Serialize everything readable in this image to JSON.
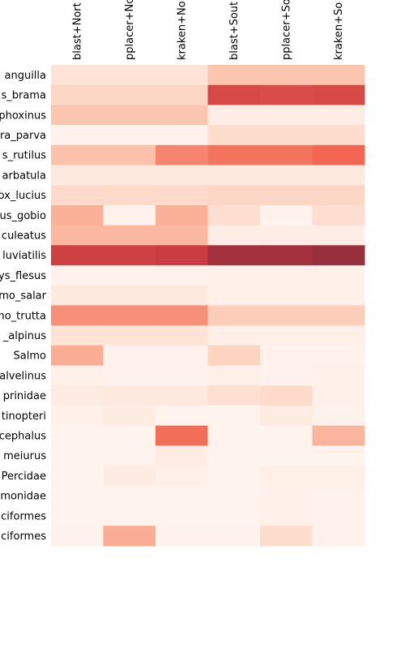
{
  "chart_data": {
    "type": "heatmap",
    "title": "",
    "xlabel": "",
    "ylabel": "",
    "columns": [
      "blast+North",
      "pplacer+North",
      "kraken+North",
      "blast+South",
      "pplacer+South",
      "kraken+South"
    ],
    "rows": [
      "Anguilla_anguilla",
      "Abramis_brama",
      "Phoxinus_phoxinus",
      "Leucaspius_parva",
      "Rutilus_rutilus",
      "Barbatula_barbatula",
      "Esox_lucius",
      "Gobio_gobio",
      "Gasterosteus_aculeatus",
      "Perca_fluviatilis",
      "Platichthys_flesus",
      "Salmo_salar",
      "Salmo_trutta",
      "Salvelinus_alpinus",
      "Salmo",
      "Salvelinus",
      "Cyprinidae",
      "Actinopteri",
      "Cottus_cephalus",
      "Ameiurus",
      "Percidae",
      "Salmonidae",
      "Cypriniformes",
      "Perciformes"
    ],
    "values": [
      [
        0.12,
        0.12,
        0.12,
        0.3,
        0.3,
        0.3
      ],
      [
        0.2,
        0.2,
        0.2,
        0.78,
        0.76,
        0.78
      ],
      [
        0.3,
        0.3,
        0.3,
        0.05,
        0.05,
        0.05
      ],
      [
        0.02,
        0.02,
        0.02,
        0.16,
        0.16,
        0.16
      ],
      [
        0.32,
        0.32,
        0.55,
        0.6,
        0.6,
        0.64
      ],
      [
        0.08,
        0.08,
        0.08,
        0.08,
        0.08,
        0.08
      ],
      [
        0.18,
        0.18,
        0.18,
        0.2,
        0.2,
        0.2
      ],
      [
        0.4,
        0.02,
        0.4,
        0.15,
        0.02,
        0.15
      ],
      [
        0.36,
        0.36,
        0.36,
        0.05,
        0.05,
        0.05
      ],
      [
        0.82,
        0.82,
        0.84,
        0.94,
        0.94,
        0.97
      ],
      [
        0.02,
        0.02,
        0.02,
        0.03,
        0.03,
        0.03
      ],
      [
        0.08,
        0.08,
        0.08,
        0.03,
        0.03,
        0.03
      ],
      [
        0.52,
        0.52,
        0.52,
        0.26,
        0.26,
        0.26
      ],
      [
        0.12,
        0.12,
        0.12,
        0.04,
        0.04,
        0.04
      ],
      [
        0.42,
        0.02,
        0.02,
        0.22,
        0.02,
        0.02
      ],
      [
        0.03,
        0.02,
        0.02,
        0.04,
        0.02,
        0.03
      ],
      [
        0.06,
        0.08,
        0.08,
        0.14,
        0.18,
        0.03
      ],
      [
        0.03,
        0.06,
        0.01,
        0.01,
        0.06,
        0.02
      ],
      [
        0.01,
        0.01,
        0.62,
        0.01,
        0.01,
        0.38
      ],
      [
        0.01,
        0.01,
        0.06,
        0.01,
        0.01,
        0.01
      ],
      [
        0.01,
        0.06,
        0.03,
        0.01,
        0.04,
        0.04
      ],
      [
        0.01,
        0.01,
        0.01,
        0.01,
        0.03,
        0.02
      ],
      [
        0.01,
        0.01,
        0.01,
        0.01,
        0.03,
        0.02
      ],
      [
        0.02,
        0.42,
        0.02,
        0.02,
        0.16,
        0.02
      ]
    ],
    "row_tick_labels": [
      "anguilla",
      "s_brama",
      "phoxinus",
      "ra_parva",
      "s_rutilus",
      "arbatula",
      "ox_lucius",
      "us_gobio",
      "culeatus",
      "luviatilis",
      "ys_flesus",
      "mo_salar",
      "mo_trutta",
      "_alpinus",
      "Salmo",
      "alvelinus",
      "prinidae",
      "tinopteri",
      "cephalus",
      "meiurus",
      "Percidae",
      "monidae",
      "ciformes",
      "ciformes"
    ],
    "col_tick_labels": [
      "blast+Nort",
      "pplacer+No",
      "kraken+No",
      "blast+Sout",
      "pplacer+So",
      "kraken+So"
    ],
    "colormap": "Reds",
    "legend": false,
    "grid": false
  }
}
